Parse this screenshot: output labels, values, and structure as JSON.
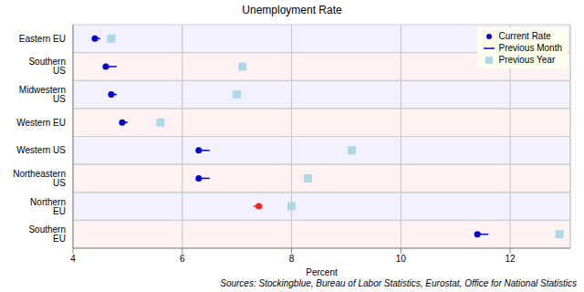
{
  "chart_data": {
    "type": "scatter",
    "title": "Unemployment Rate",
    "x_label": "Percent",
    "annotations": [
      "Sources: Stockingblue, Bureau of Labor Statistics, Eurostat, Office for National Statistics"
    ],
    "orientation": "horizontal",
    "categories": [
      "Eastern EU",
      "Southern US",
      "Midwestern US",
      "Western EU",
      "Western US",
      "Northeastern US",
      "Northern EU",
      "Southern EU"
    ],
    "series": [
      {
        "name": "Current Rate",
        "type": "scatter",
        "marker": "circle",
        "colors": [
          "#0000cc",
          "#0000cc",
          "#0000cc",
          "#0000cc",
          "#0000cc",
          "#0000cc",
          "#ee2222",
          "#0000cc"
        ],
        "values": [
          4.4,
          4.6,
          4.7,
          4.9,
          6.3,
          6.3,
          7.4,
          11.4
        ]
      },
      {
        "name": "Previous Month",
        "type": "line",
        "line_style": "solid",
        "colors": [
          "#0000cc",
          "#0000cc",
          "#0000cc",
          "#0000cc",
          "#0000cc",
          "#0000cc",
          "#ee2222",
          "#0000cc"
        ],
        "values": [
          4.5,
          4.8,
          4.8,
          5.0,
          6.5,
          6.5,
          7.3,
          11.6
        ]
      },
      {
        "name": "Previous Year",
        "type": "scatter",
        "marker": "square",
        "color": "#add8e6",
        "values": [
          4.7,
          7.1,
          7.0,
          5.6,
          9.1,
          8.3,
          8.0,
          12.9
        ]
      }
    ],
    "xlim": [
      4,
      13.1
    ],
    "xticks": [
      4,
      6,
      8,
      10,
      12
    ],
    "grid": true,
    "legend": "upper right"
  }
}
